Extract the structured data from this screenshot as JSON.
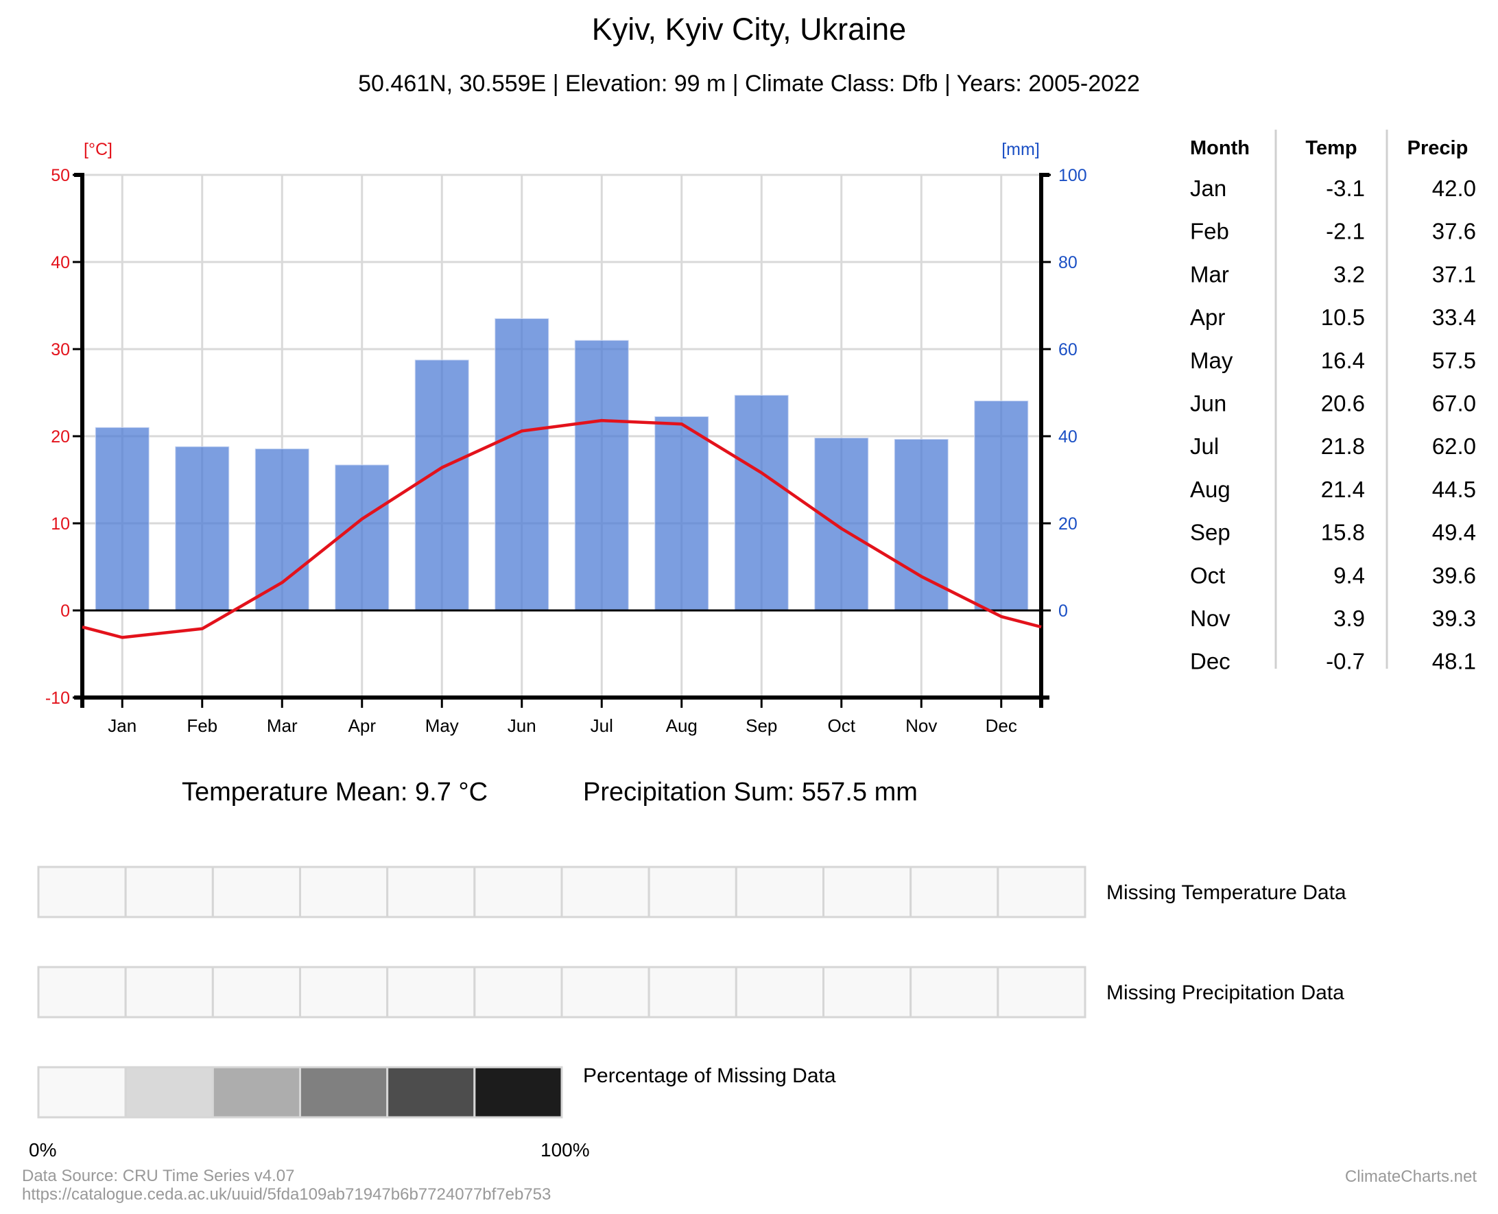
{
  "header": {
    "title": "Kyiv, Kyiv City, Ukraine",
    "subtitle": "50.461N, 30.559E | Elevation: 99 m | Climate Class: Dfb | Years: 2005-2022"
  },
  "colors": {
    "temperature": "#e3121b",
    "precipitation_bar": "#7b9cdc",
    "precip_axis": "#1a4fc4",
    "grid": "#d9d9d9"
  },
  "chart_data": {
    "type": "bar+line",
    "categories": [
      "Jan",
      "Feb",
      "Mar",
      "Apr",
      "May",
      "Jun",
      "Jul",
      "Aug",
      "Sep",
      "Oct",
      "Nov",
      "Dec"
    ],
    "series": [
      {
        "name": "Temp",
        "type": "line",
        "axis": "left",
        "unit": "°C",
        "values": [
          -3.1,
          -2.1,
          3.2,
          10.5,
          16.4,
          20.6,
          21.8,
          21.4,
          15.8,
          9.4,
          3.9,
          -0.7
        ]
      },
      {
        "name": "Precip",
        "type": "bar",
        "axis": "right",
        "unit": "mm",
        "values": [
          42.0,
          37.6,
          37.1,
          33.4,
          57.5,
          67.0,
          62.0,
          44.5,
          49.4,
          39.6,
          39.3,
          48.1
        ]
      }
    ],
    "left_axis": {
      "label": "[°C]",
      "range": [
        -10,
        50
      ],
      "ticks": [
        "50",
        "40",
        "30",
        "20",
        "10",
        "0",
        "-10"
      ]
    },
    "right_axis": {
      "label": "[mm]",
      "range": [
        -20,
        100
      ],
      "ticks": [
        "100",
        "80",
        "60",
        "40",
        "20",
        "0"
      ]
    },
    "grid": true
  },
  "table": {
    "headers": [
      "Month",
      "Temp",
      "Precip"
    ],
    "rows": [
      {
        "month": "Jan",
        "temp": "-3.1",
        "precip": "42.0"
      },
      {
        "month": "Feb",
        "temp": "-2.1",
        "precip": "37.6"
      },
      {
        "month": "Mar",
        "temp": "3.2",
        "precip": "37.1"
      },
      {
        "month": "Apr",
        "temp": "10.5",
        "precip": "33.4"
      },
      {
        "month": "May",
        "temp": "16.4",
        "precip": "57.5"
      },
      {
        "month": "Jun",
        "temp": "20.6",
        "precip": "67.0"
      },
      {
        "month": "Jul",
        "temp": "21.8",
        "precip": "62.0"
      },
      {
        "month": "Aug",
        "temp": "21.4",
        "precip": "44.5"
      },
      {
        "month": "Sep",
        "temp": "15.8",
        "precip": "49.4"
      },
      {
        "month": "Oct",
        "temp": "9.4",
        "precip": "39.6"
      },
      {
        "month": "Nov",
        "temp": "3.9",
        "precip": "39.3"
      },
      {
        "month": "Dec",
        "temp": "-0.7",
        "precip": "48.1"
      }
    ]
  },
  "stats": {
    "temperature_mean": "Temperature Mean: 9.7 °C",
    "precipitation_sum": "Precipitation Sum: 557.5 mm"
  },
  "missing": {
    "temperature_label": "Missing Temperature Data",
    "precipitation_label": "Missing Precipitation Data",
    "temperature_missing_pct": [
      0,
      0,
      0,
      0,
      0,
      0,
      0,
      0,
      0,
      0,
      0,
      0
    ],
    "precipitation_missing_pct": [
      0,
      0,
      0,
      0,
      0,
      0,
      0,
      0,
      0,
      0,
      0,
      0
    ],
    "scale_label": "Percentage of Missing Data",
    "scale_colors": [
      "#f8f8f8",
      "#d9d9d9",
      "#adadad",
      "#808080",
      "#4d4d4d",
      "#1c1c1c"
    ],
    "scale_min": "0%",
    "scale_max": "100%"
  },
  "footer": {
    "source": "Data Source: CRU Time Series v4.07",
    "url": "https://catalogue.ceda.ac.uk/uuid/5fda109ab71947b6b7724077bf7eb753",
    "brand": "ClimateCharts.net"
  }
}
